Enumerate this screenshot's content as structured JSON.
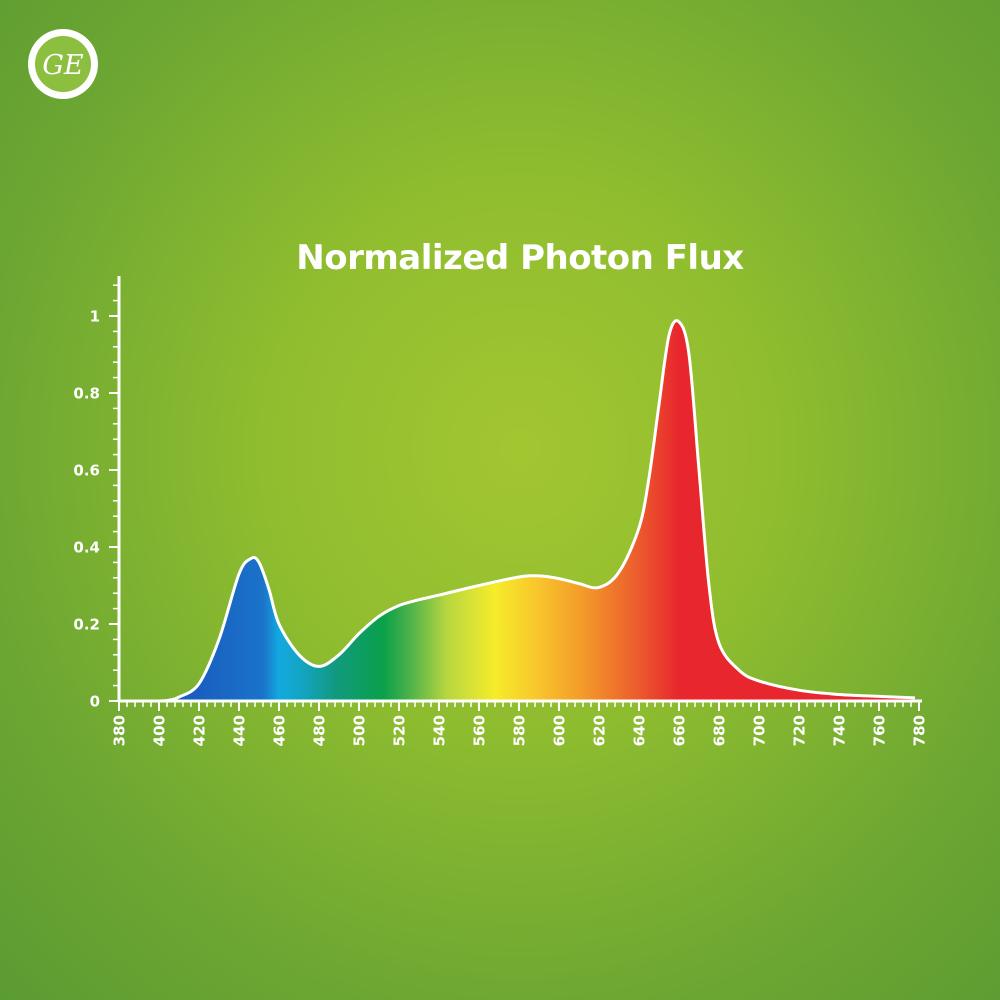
{
  "brand": {
    "logo_text": "GE",
    "logo_icon": "ge-monogram-icon"
  },
  "colors": {
    "background_center": "#a3c631",
    "background_edge": "#5b9b33",
    "axis": "#ffffff",
    "curve_stroke": "#ffffff",
    "spectrum_blue": "#1a73c9",
    "spectrum_cyan": "#13a9e0",
    "spectrum_green": "#0aa04a",
    "spectrum_yellow": "#f6ec2a",
    "spectrum_orange": "#f39a2a",
    "spectrum_red": "#e8262d"
  },
  "chart_data": {
    "type": "area",
    "title": "Normalized Photon Flux",
    "xlabel": "",
    "ylabel": "",
    "xlim": [
      380,
      780
    ],
    "ylim": [
      0,
      1.1
    ],
    "x_ticks": [
      "380",
      "400",
      "420",
      "440",
      "460",
      "480",
      "500",
      "520",
      "540",
      "560",
      "580",
      "600",
      "620",
      "640",
      "660",
      "680",
      "700",
      "720",
      "740",
      "760",
      "780"
    ],
    "y_ticks": [
      "0",
      "0.2",
      "0.4",
      "0.6",
      "0.8",
      "1"
    ],
    "grid": false,
    "legend": "none",
    "fill": "visible-spectrum gradient",
    "series": [
      {
        "x": [
          380,
          400,
          405,
          410,
          420,
          430,
          440,
          446,
          450,
          455,
          460,
          470,
          480,
          490,
          500,
          510,
          520,
          530,
          540,
          560,
          580,
          590,
          600,
          610,
          620,
          630,
          640,
          645,
          650,
          655,
          660,
          665,
          670,
          675,
          680,
          690,
          700,
          720,
          740,
          760,
          778
        ],
        "y": [
          0.0,
          0.0,
          0.002,
          0.01,
          0.045,
          0.16,
          0.33,
          0.37,
          0.36,
          0.29,
          0.2,
          0.12,
          0.09,
          0.12,
          0.175,
          0.22,
          0.248,
          0.263,
          0.275,
          0.3,
          0.322,
          0.325,
          0.318,
          0.305,
          0.295,
          0.335,
          0.45,
          0.58,
          0.77,
          0.95,
          0.985,
          0.9,
          0.6,
          0.3,
          0.15,
          0.08,
          0.052,
          0.028,
          0.017,
          0.012,
          0.008
        ]
      }
    ]
  }
}
